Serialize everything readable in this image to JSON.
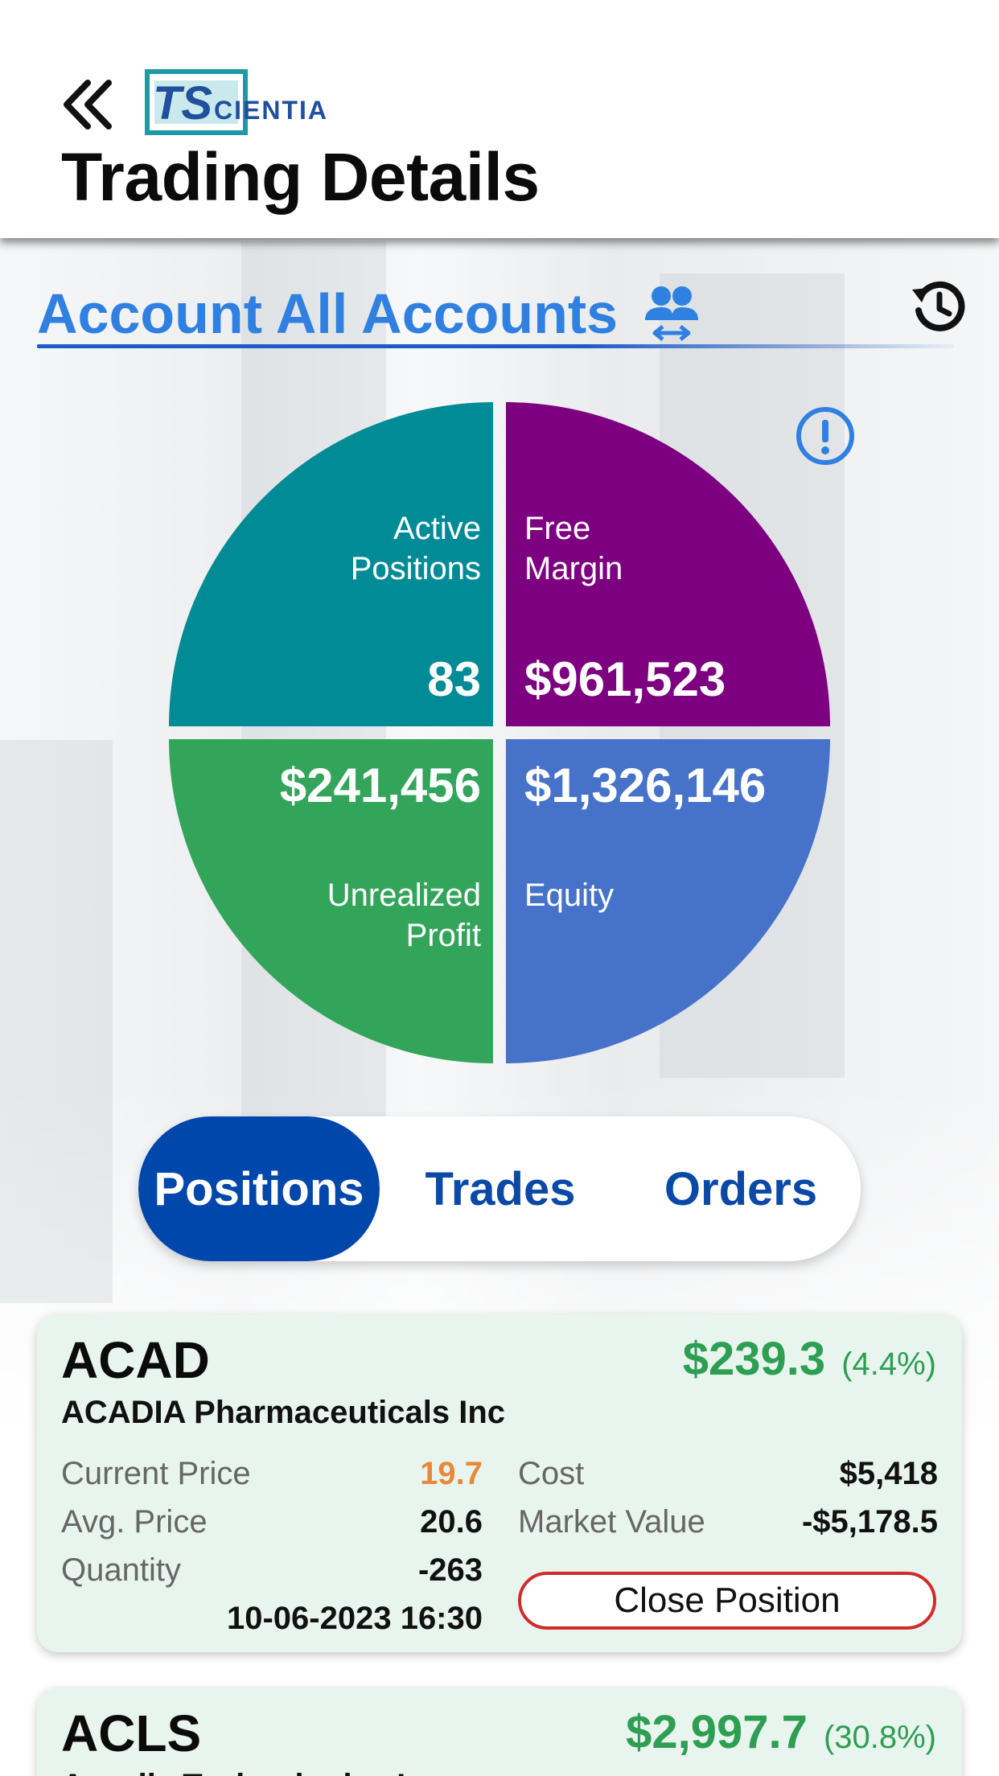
{
  "header": {
    "title": "Trading Details",
    "logo_text": "TSCIENTIA"
  },
  "account": {
    "label": "Account All Accounts"
  },
  "summary": {
    "active_positions": {
      "label_line1": "Active",
      "label_line2": "Positions",
      "value": "83",
      "color": "#018b96"
    },
    "free_margin": {
      "label_line1": "Free",
      "label_line2": "Margin",
      "value": "$961,523",
      "color": "#7d0080"
    },
    "unrealized_profit": {
      "label_line1": "Unrealized",
      "label_line2": "Profit",
      "value": "$241,456",
      "color": "#33a55b"
    },
    "equity": {
      "label_line1": "Equity",
      "value": "$1,326,146",
      "color": "#4673c9"
    }
  },
  "tabs": [
    {
      "label": "Positions",
      "active": true
    },
    {
      "label": "Trades",
      "active": false
    },
    {
      "label": "Orders",
      "active": false
    }
  ],
  "positions": [
    {
      "ticker": "ACAD",
      "company": "ACADIA Pharmaceuticals Inc",
      "pnl_value": "$239.3",
      "pnl_pct": "(4.4%)",
      "current_price_label": "Current Price",
      "current_price": "19.7",
      "avg_price_label": "Avg. Price",
      "avg_price": "20.6",
      "quantity_label": "Quantity",
      "quantity": "-263",
      "datetime": "10-06-2023 16:30",
      "cost_label": "Cost",
      "cost": "$5,418",
      "market_value_label": "Market Value",
      "market_value": "-$5,178.5",
      "close_label": "Close Position"
    },
    {
      "ticker": "ACLS",
      "company": "Axcelis Technologies Inc",
      "pnl_value": "$2,997.7",
      "pnl_pct": "(30.8%)"
    }
  ],
  "colors": {
    "accent_blue": "#2f80e0",
    "tab_active": "#0047ab",
    "profit_green": "#2e9e52",
    "price_orange": "#e8893a",
    "close_red": "#d22b2b",
    "card_bg": "#e8f5ef"
  },
  "icons": {
    "back": "chevron-double-left-icon",
    "switch_account": "users-swap-icon",
    "history": "history-icon",
    "info": "info-alert-icon"
  }
}
